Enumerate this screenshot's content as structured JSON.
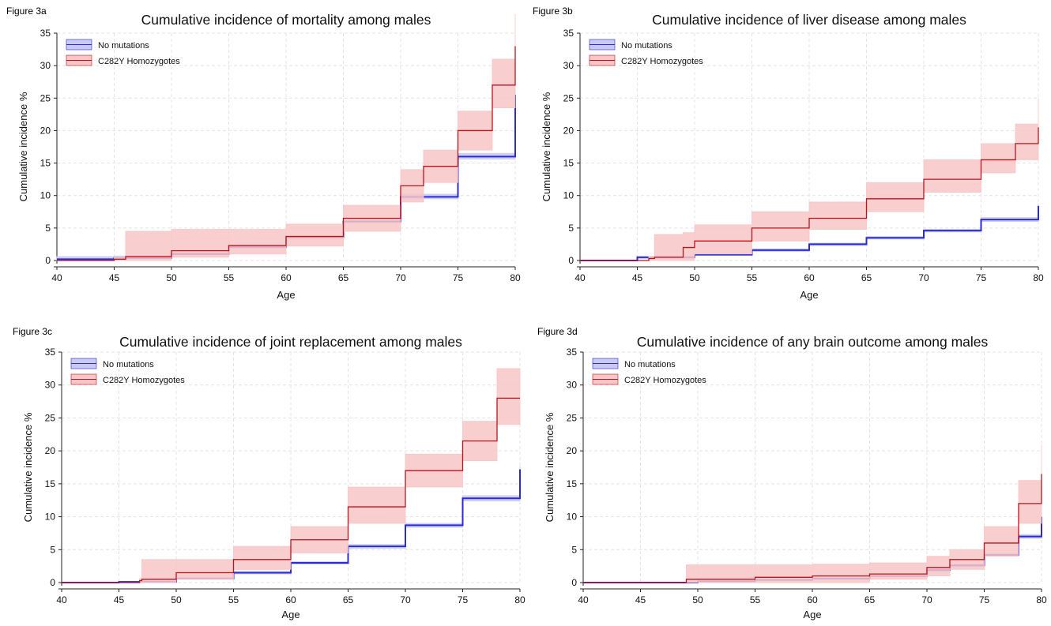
{
  "chart_data": [
    {
      "type": "line",
      "panel_label": "Figure 3a",
      "title": "Cumulative incidence of mortality among males",
      "xlabel": "Age",
      "ylabel": "Cumulative incidence %",
      "xlim": [
        40,
        80
      ],
      "ylim": [
        0,
        35
      ],
      "xticks": [
        40,
        45,
        50,
        55,
        60,
        65,
        70,
        75,
        80
      ],
      "yticks": [
        0,
        5,
        10,
        15,
        20,
        25,
        30,
        35
      ],
      "grid": true,
      "legend_position": "top-left",
      "series": [
        {
          "name": "No mutations",
          "color": "#2b2bd6",
          "band_color": "#c9c9f4",
          "x": [
            40,
            45,
            50,
            55,
            60,
            65,
            70,
            75,
            80
          ],
          "y": [
            0.2,
            0.4,
            1.0,
            2.1,
            3.6,
            6.0,
            9.8,
            16.0,
            25.5
          ],
          "lower": [
            0.0,
            0.3,
            0.9,
            1.9,
            3.4,
            5.8,
            9.5,
            15.6,
            25.0
          ],
          "upper": [
            0.6,
            0.7,
            1.2,
            2.3,
            3.8,
            6.3,
            10.2,
            16.5,
            26.0
          ]
        },
        {
          "name": "C282Y Homozygotes",
          "color": "#b8161c",
          "band_color": "#f8c6c6",
          "x": [
            40,
            45,
            46,
            50,
            55,
            60,
            65,
            70,
            72,
            75,
            78,
            80
          ],
          "y": [
            0,
            0.2,
            0.6,
            1.5,
            2.3,
            3.7,
            6.5,
            11.5,
            14.5,
            20.0,
            27.0,
            33.0
          ],
          "lower": [
            0,
            0.0,
            0.0,
            0.5,
            1.0,
            2.2,
            4.5,
            9.0,
            12.0,
            17.0,
            23.5,
            29.0
          ],
          "upper": [
            0,
            0.5,
            4.5,
            4.8,
            4.8,
            5.6,
            8.5,
            14.0,
            17.0,
            23.0,
            31.0,
            38.0
          ]
        }
      ]
    },
    {
      "type": "line",
      "panel_label": "Figure 3b",
      "title": "Cumulative incidence of liver disease among males",
      "xlabel": "Age",
      "ylabel": "Cumulative incidence %",
      "xlim": [
        40,
        80
      ],
      "ylim": [
        0,
        35
      ],
      "xticks": [
        40,
        45,
        50,
        55,
        60,
        65,
        70,
        75,
        80
      ],
      "yticks": [
        0,
        5,
        10,
        15,
        20,
        25,
        30,
        35
      ],
      "grid": true,
      "legend_position": "top-left",
      "series": [
        {
          "name": "No mutations",
          "color": "#2b2bd6",
          "band_color": "#c9c9f4",
          "x": [
            40,
            45,
            50,
            55,
            60,
            65,
            70,
            75,
            80
          ],
          "y": [
            0,
            0.5,
            0.9,
            1.6,
            2.5,
            3.5,
            4.6,
            6.3,
            8.4
          ],
          "lower": [
            0,
            0.3,
            0.8,
            1.4,
            2.3,
            3.3,
            4.4,
            6.0,
            8.0
          ],
          "upper": [
            0,
            0.6,
            1.1,
            1.8,
            2.7,
            3.7,
            4.8,
            6.6,
            8.8
          ]
        },
        {
          "name": "C282Y Homozygotes",
          "color": "#b8161c",
          "band_color": "#f8c6c6",
          "x": [
            40,
            46,
            46.5,
            49,
            50,
            55,
            60,
            65,
            70,
            75,
            78,
            80
          ],
          "y": [
            0,
            0.3,
            0.5,
            2.0,
            3.0,
            5.0,
            6.5,
            9.5,
            12.5,
            15.5,
            18.0,
            20.5
          ],
          "lower": [
            0,
            0.0,
            0.0,
            0.0,
            1.0,
            3.0,
            4.8,
            7.5,
            10.5,
            13.5,
            15.5,
            17.0
          ],
          "upper": [
            0,
            0.6,
            4.0,
            4.3,
            5.5,
            7.5,
            9.0,
            12.0,
            15.5,
            18.0,
            21.0,
            25.0
          ]
        }
      ]
    },
    {
      "type": "line",
      "panel_label": "Figure 3c",
      "title": "Cumulative incidence of joint replacement among males",
      "xlabel": "Age",
      "ylabel": "Cumulative incidence %",
      "xlim": [
        40,
        80
      ],
      "ylim": [
        0,
        35
      ],
      "xticks": [
        40,
        45,
        50,
        55,
        60,
        65,
        70,
        75,
        80
      ],
      "yticks": [
        0,
        5,
        10,
        15,
        20,
        25,
        30,
        35
      ],
      "grid": true,
      "legend_position": "top-left",
      "series": [
        {
          "name": "No mutations",
          "color": "#2b2bd6",
          "band_color": "#c9c9f4",
          "x": [
            40,
            45,
            50,
            55,
            60,
            65,
            70,
            75,
            80
          ],
          "y": [
            0,
            0.1,
            0.6,
            1.5,
            3.0,
            5.5,
            8.7,
            12.8,
            17.2
          ],
          "lower": [
            0,
            0.0,
            0.5,
            1.3,
            2.8,
            5.2,
            8.4,
            12.4,
            16.7
          ],
          "upper": [
            0,
            0.2,
            0.8,
            1.7,
            3.2,
            5.8,
            9.0,
            13.2,
            17.7
          ]
        },
        {
          "name": "C282Y Homozygotes",
          "color": "#b8161c",
          "band_color": "#f8c6c6",
          "x": [
            40,
            46.8,
            47,
            50,
            55,
            60,
            65,
            70,
            75,
            78,
            80
          ],
          "y": [
            0,
            0.3,
            0.5,
            1.5,
            3.5,
            6.5,
            11.5,
            17.0,
            21.5,
            28.0,
            28.0
          ],
          "lower": [
            0,
            0.0,
            0.0,
            0.5,
            2.0,
            4.5,
            9.0,
            14.5,
            18.5,
            24.0,
            24.0
          ],
          "upper": [
            0,
            0.6,
            3.5,
            3.5,
            5.5,
            8.5,
            14.5,
            19.5,
            24.5,
            32.5,
            32.5
          ]
        }
      ]
    },
    {
      "type": "line",
      "panel_label": "Figure 3d",
      "title": "Cumulative incidence of any brain outcome among males",
      "xlabel": "Age",
      "ylabel": "Cumulative incidence %",
      "xlim": [
        40,
        80
      ],
      "ylim": [
        0,
        35
      ],
      "xticks": [
        40,
        45,
        50,
        55,
        60,
        65,
        70,
        75,
        80
      ],
      "yticks": [
        0,
        5,
        10,
        15,
        20,
        25,
        30,
        35
      ],
      "grid": true,
      "legend_position": "top-left",
      "series": [
        {
          "name": "No mutations",
          "color": "#2b2bd6",
          "band_color": "#c9c9f4",
          "x": [
            40,
            50,
            55,
            60,
            65,
            70,
            72,
            75,
            78,
            80
          ],
          "y": [
            0,
            0.2,
            0.4,
            0.6,
            1.0,
            1.9,
            2.6,
            4.2,
            7.0,
            10.0
          ],
          "lower": [
            0,
            0.1,
            0.3,
            0.5,
            0.9,
            1.7,
            2.4,
            4.0,
            6.7,
            9.6
          ],
          "upper": [
            0,
            0.3,
            0.5,
            0.7,
            1.1,
            2.1,
            2.8,
            4.4,
            7.3,
            10.4
          ]
        },
        {
          "name": "C282Y Homozygotes",
          "color": "#b8161c",
          "band_color": "#f8c6c6",
          "x": [
            40,
            48.9,
            49,
            55,
            60,
            65,
            70,
            72,
            75,
            78,
            80
          ],
          "y": [
            0,
            0,
            0.5,
            0.8,
            1.0,
            1.3,
            2.3,
            3.5,
            6.0,
            12.0,
            16.5
          ],
          "lower": [
            0,
            0,
            0.0,
            0.0,
            0.0,
            0.5,
            1.0,
            2.0,
            4.0,
            9.0,
            13.0
          ],
          "upper": [
            0,
            0,
            2.7,
            2.7,
            2.8,
            3.0,
            4.0,
            5.0,
            8.5,
            15.5,
            21.0
          ]
        }
      ]
    }
  ]
}
